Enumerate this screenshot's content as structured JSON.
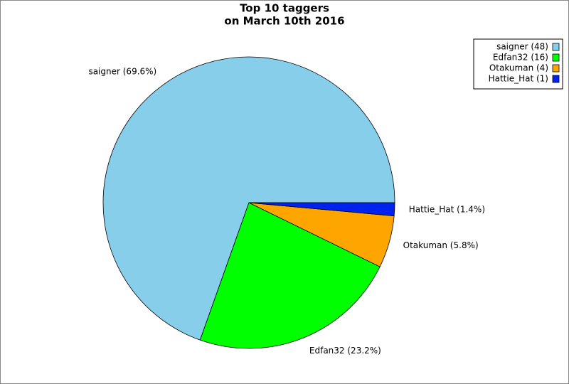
{
  "chart_data": {
    "type": "pie",
    "title": [
      "Top 10 taggers",
      "on March 10th 2016"
    ],
    "categories": [
      "saigner",
      "Edfan32",
      "Otakuman",
      "Hattie_Hat"
    ],
    "values": [
      48,
      16,
      4,
      1
    ],
    "value_labels": [
      "saigner (69.6%)",
      "Edfan32 (23.2%)",
      "Otakuman (5.8%)",
      "Hattie_Hat (1.4%)"
    ],
    "legend_labels": [
      "saigner (48)",
      "Edfan32 (16)",
      "Otakuman (4)",
      "Hattie_Hat (1)"
    ],
    "colors": [
      "#87ceeb",
      "#00ff00",
      "#ffa500",
      "#0022ee"
    ],
    "legend": "top-right"
  }
}
